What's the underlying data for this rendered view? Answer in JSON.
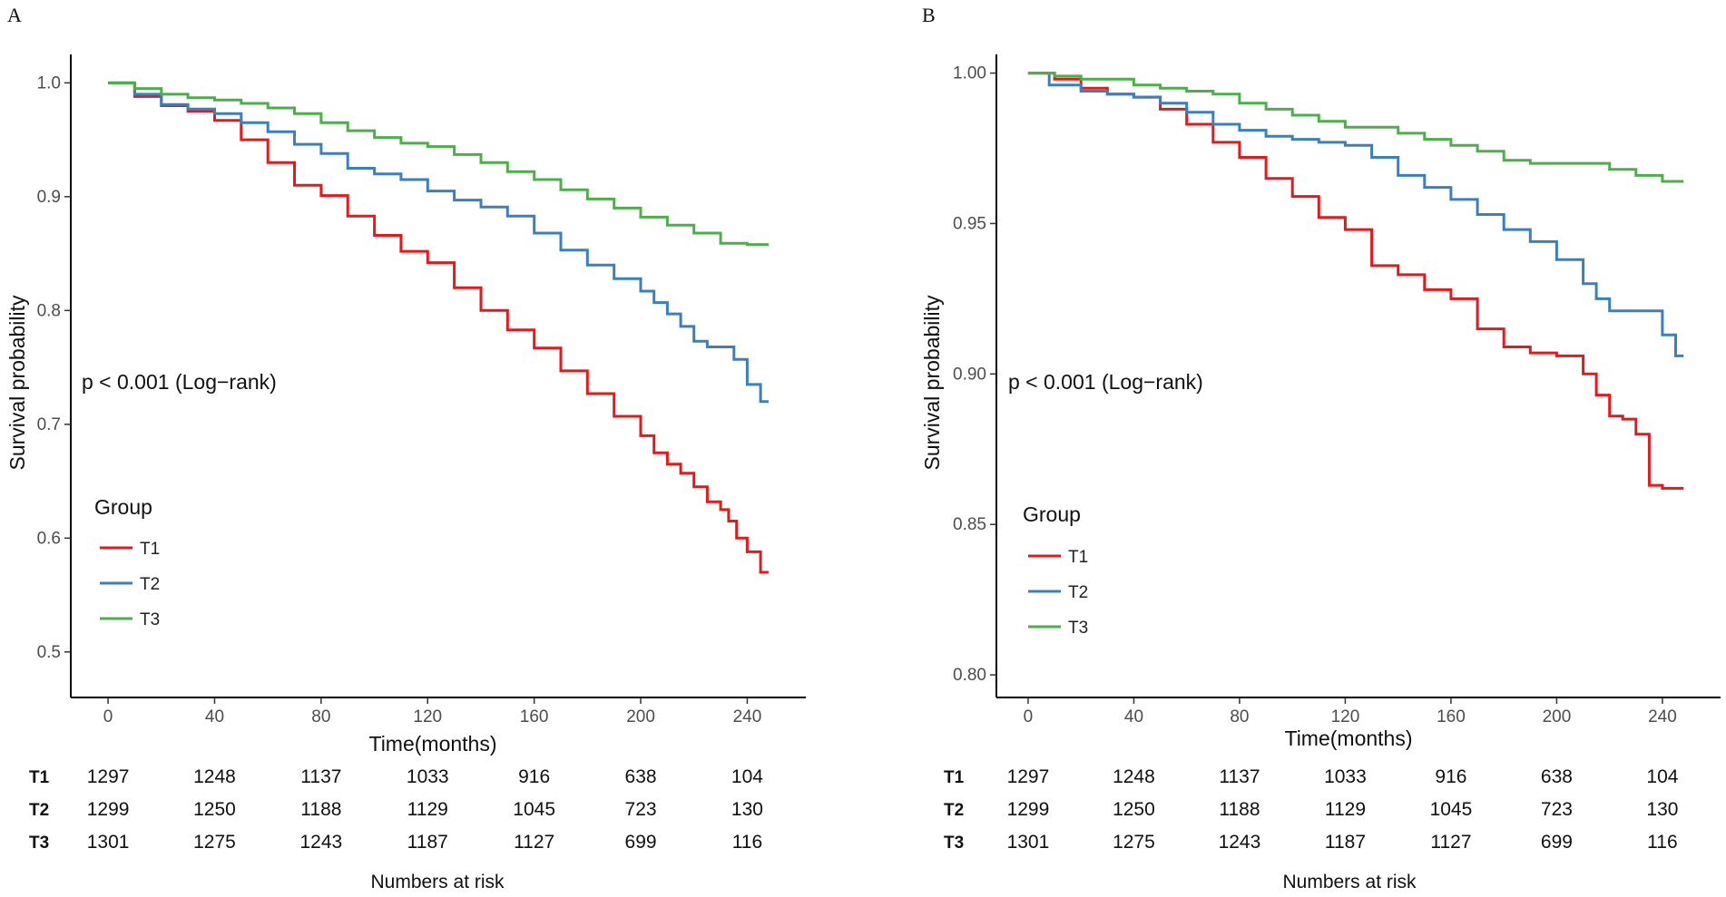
{
  "chart_data": [
    {
      "panel": "A",
      "type": "line",
      "xlabel": "Time(months)",
      "ylabel": "Survival probability",
      "xlim": [
        -14,
        262
      ],
      "ylim": [
        0.46,
        1.025
      ],
      "x_ticks": [
        0,
        40,
        80,
        120,
        160,
        200,
        240
      ],
      "x_tick_labels": [
        "0",
        "40",
        "80",
        "120",
        "160",
        "200",
        "240"
      ],
      "y_ticks": [
        0.5,
        0.6,
        0.7,
        0.8,
        0.9,
        1.0
      ],
      "y_tick_labels": [
        "0.5",
        "0.6",
        "0.7",
        "0.8",
        "0.9",
        "1.0"
      ],
      "annotation": "p < 0.001 (Log−rank)",
      "legend_title": "Group",
      "series": [
        {
          "name": "T1",
          "color": "#e31a1c",
          "x": [
            0,
            10,
            20,
            30,
            40,
            50,
            60,
            70,
            80,
            90,
            100,
            110,
            120,
            130,
            140,
            150,
            160,
            170,
            180,
            190,
            200,
            205,
            210,
            215,
            220,
            225,
            230,
            233,
            236,
            240,
            245,
            248
          ],
          "y": [
            1.0,
            0.988,
            0.98,
            0.975,
            0.967,
            0.95,
            0.93,
            0.91,
            0.901,
            0.883,
            0.866,
            0.852,
            0.842,
            0.82,
            0.8,
            0.783,
            0.767,
            0.747,
            0.727,
            0.707,
            0.69,
            0.675,
            0.665,
            0.657,
            0.645,
            0.632,
            0.625,
            0.615,
            0.6,
            0.588,
            0.57,
            0.57
          ]
        },
        {
          "name": "T2",
          "color": "#3b7fbf",
          "x": [
            0,
            10,
            20,
            30,
            40,
            50,
            60,
            70,
            80,
            90,
            100,
            110,
            120,
            130,
            140,
            150,
            160,
            170,
            180,
            190,
            200,
            205,
            210,
            215,
            220,
            225,
            230,
            235,
            240,
            245,
            248
          ],
          "y": [
            1.0,
            0.99,
            0.981,
            0.977,
            0.973,
            0.965,
            0.957,
            0.946,
            0.938,
            0.925,
            0.92,
            0.915,
            0.905,
            0.897,
            0.891,
            0.883,
            0.868,
            0.853,
            0.84,
            0.828,
            0.817,
            0.807,
            0.797,
            0.786,
            0.773,
            0.768,
            0.768,
            0.757,
            0.735,
            0.72,
            0.72
          ]
        },
        {
          "name": "T3",
          "color": "#4daf4a",
          "x": [
            0,
            10,
            20,
            30,
            40,
            50,
            60,
            70,
            80,
            90,
            100,
            110,
            120,
            130,
            140,
            150,
            160,
            170,
            180,
            190,
            200,
            210,
            220,
            230,
            240,
            248
          ],
          "y": [
            1.0,
            0.995,
            0.99,
            0.987,
            0.985,
            0.982,
            0.978,
            0.973,
            0.965,
            0.958,
            0.952,
            0.947,
            0.944,
            0.937,
            0.93,
            0.922,
            0.915,
            0.906,
            0.898,
            0.89,
            0.882,
            0.875,
            0.868,
            0.859,
            0.858,
            0.858
          ]
        }
      ]
    },
    {
      "panel": "B",
      "type": "line",
      "xlabel": "Time(months)",
      "ylabel": "Survival probability",
      "xlim": [
        -12,
        262
      ],
      "ylim": [
        0.7925,
        1.0062
      ],
      "x_ticks": [
        0,
        40,
        80,
        120,
        160,
        200,
        240
      ],
      "x_tick_labels": [
        "0",
        "40",
        "80",
        "120",
        "160",
        "200",
        "240"
      ],
      "y_ticks": [
        0.8,
        0.85,
        0.9,
        0.95,
        1.0
      ],
      "y_tick_labels": [
        "0.80",
        "0.85",
        "0.90",
        "0.95",
        "1.00"
      ],
      "annotation": "p < 0.001 (Log−rank)",
      "legend_title": "Group",
      "series": [
        {
          "name": "T1",
          "color": "#e31a1c",
          "x": [
            0,
            10,
            20,
            30,
            40,
            50,
            60,
            70,
            80,
            90,
            100,
            110,
            120,
            130,
            140,
            150,
            160,
            170,
            180,
            190,
            200,
            210,
            215,
            220,
            225,
            230,
            235,
            240,
            248
          ],
          "y": [
            1.0,
            0.998,
            0.995,
            0.993,
            0.992,
            0.988,
            0.983,
            0.977,
            0.972,
            0.965,
            0.959,
            0.952,
            0.948,
            0.936,
            0.933,
            0.928,
            0.925,
            0.915,
            0.909,
            0.907,
            0.906,
            0.9,
            0.893,
            0.886,
            0.885,
            0.88,
            0.863,
            0.862,
            0.862
          ]
        },
        {
          "name": "T2",
          "color": "#3b7fbf",
          "x": [
            0,
            8,
            20,
            30,
            40,
            50,
            60,
            70,
            80,
            90,
            100,
            110,
            120,
            130,
            140,
            150,
            160,
            170,
            180,
            190,
            200,
            210,
            215,
            220,
            230,
            235,
            240,
            245,
            248
          ],
          "y": [
            1.0,
            0.996,
            0.994,
            0.993,
            0.992,
            0.99,
            0.987,
            0.983,
            0.981,
            0.979,
            0.978,
            0.977,
            0.976,
            0.972,
            0.966,
            0.962,
            0.958,
            0.953,
            0.948,
            0.944,
            0.938,
            0.93,
            0.925,
            0.921,
            0.921,
            0.921,
            0.913,
            0.906,
            0.906
          ]
        },
        {
          "name": "T3",
          "color": "#4daf4a",
          "x": [
            0,
            10,
            20,
            30,
            40,
            50,
            60,
            70,
            80,
            90,
            100,
            110,
            120,
            130,
            140,
            150,
            160,
            170,
            180,
            190,
            200,
            210,
            220,
            230,
            240,
            248
          ],
          "y": [
            1.0,
            0.999,
            0.998,
            0.998,
            0.996,
            0.995,
            0.994,
            0.993,
            0.99,
            0.988,
            0.986,
            0.984,
            0.982,
            0.982,
            0.98,
            0.978,
            0.976,
            0.974,
            0.971,
            0.97,
            0.97,
            0.97,
            0.968,
            0.966,
            0.964,
            0.964
          ]
        }
      ]
    }
  ],
  "risk_table": {
    "title": "Numbers at risk",
    "times": [
      0,
      40,
      80,
      120,
      160,
      200,
      240
    ],
    "rows": [
      {
        "label": "T1",
        "values": [
          1297,
          1248,
          1137,
          1033,
          916,
          638,
          104
        ]
      },
      {
        "label": "T2",
        "values": [
          1299,
          1250,
          1188,
          1129,
          1045,
          723,
          130
        ]
      },
      {
        "label": "T3",
        "values": [
          1301,
          1275,
          1243,
          1187,
          1127,
          699,
          116
        ]
      }
    ]
  }
}
